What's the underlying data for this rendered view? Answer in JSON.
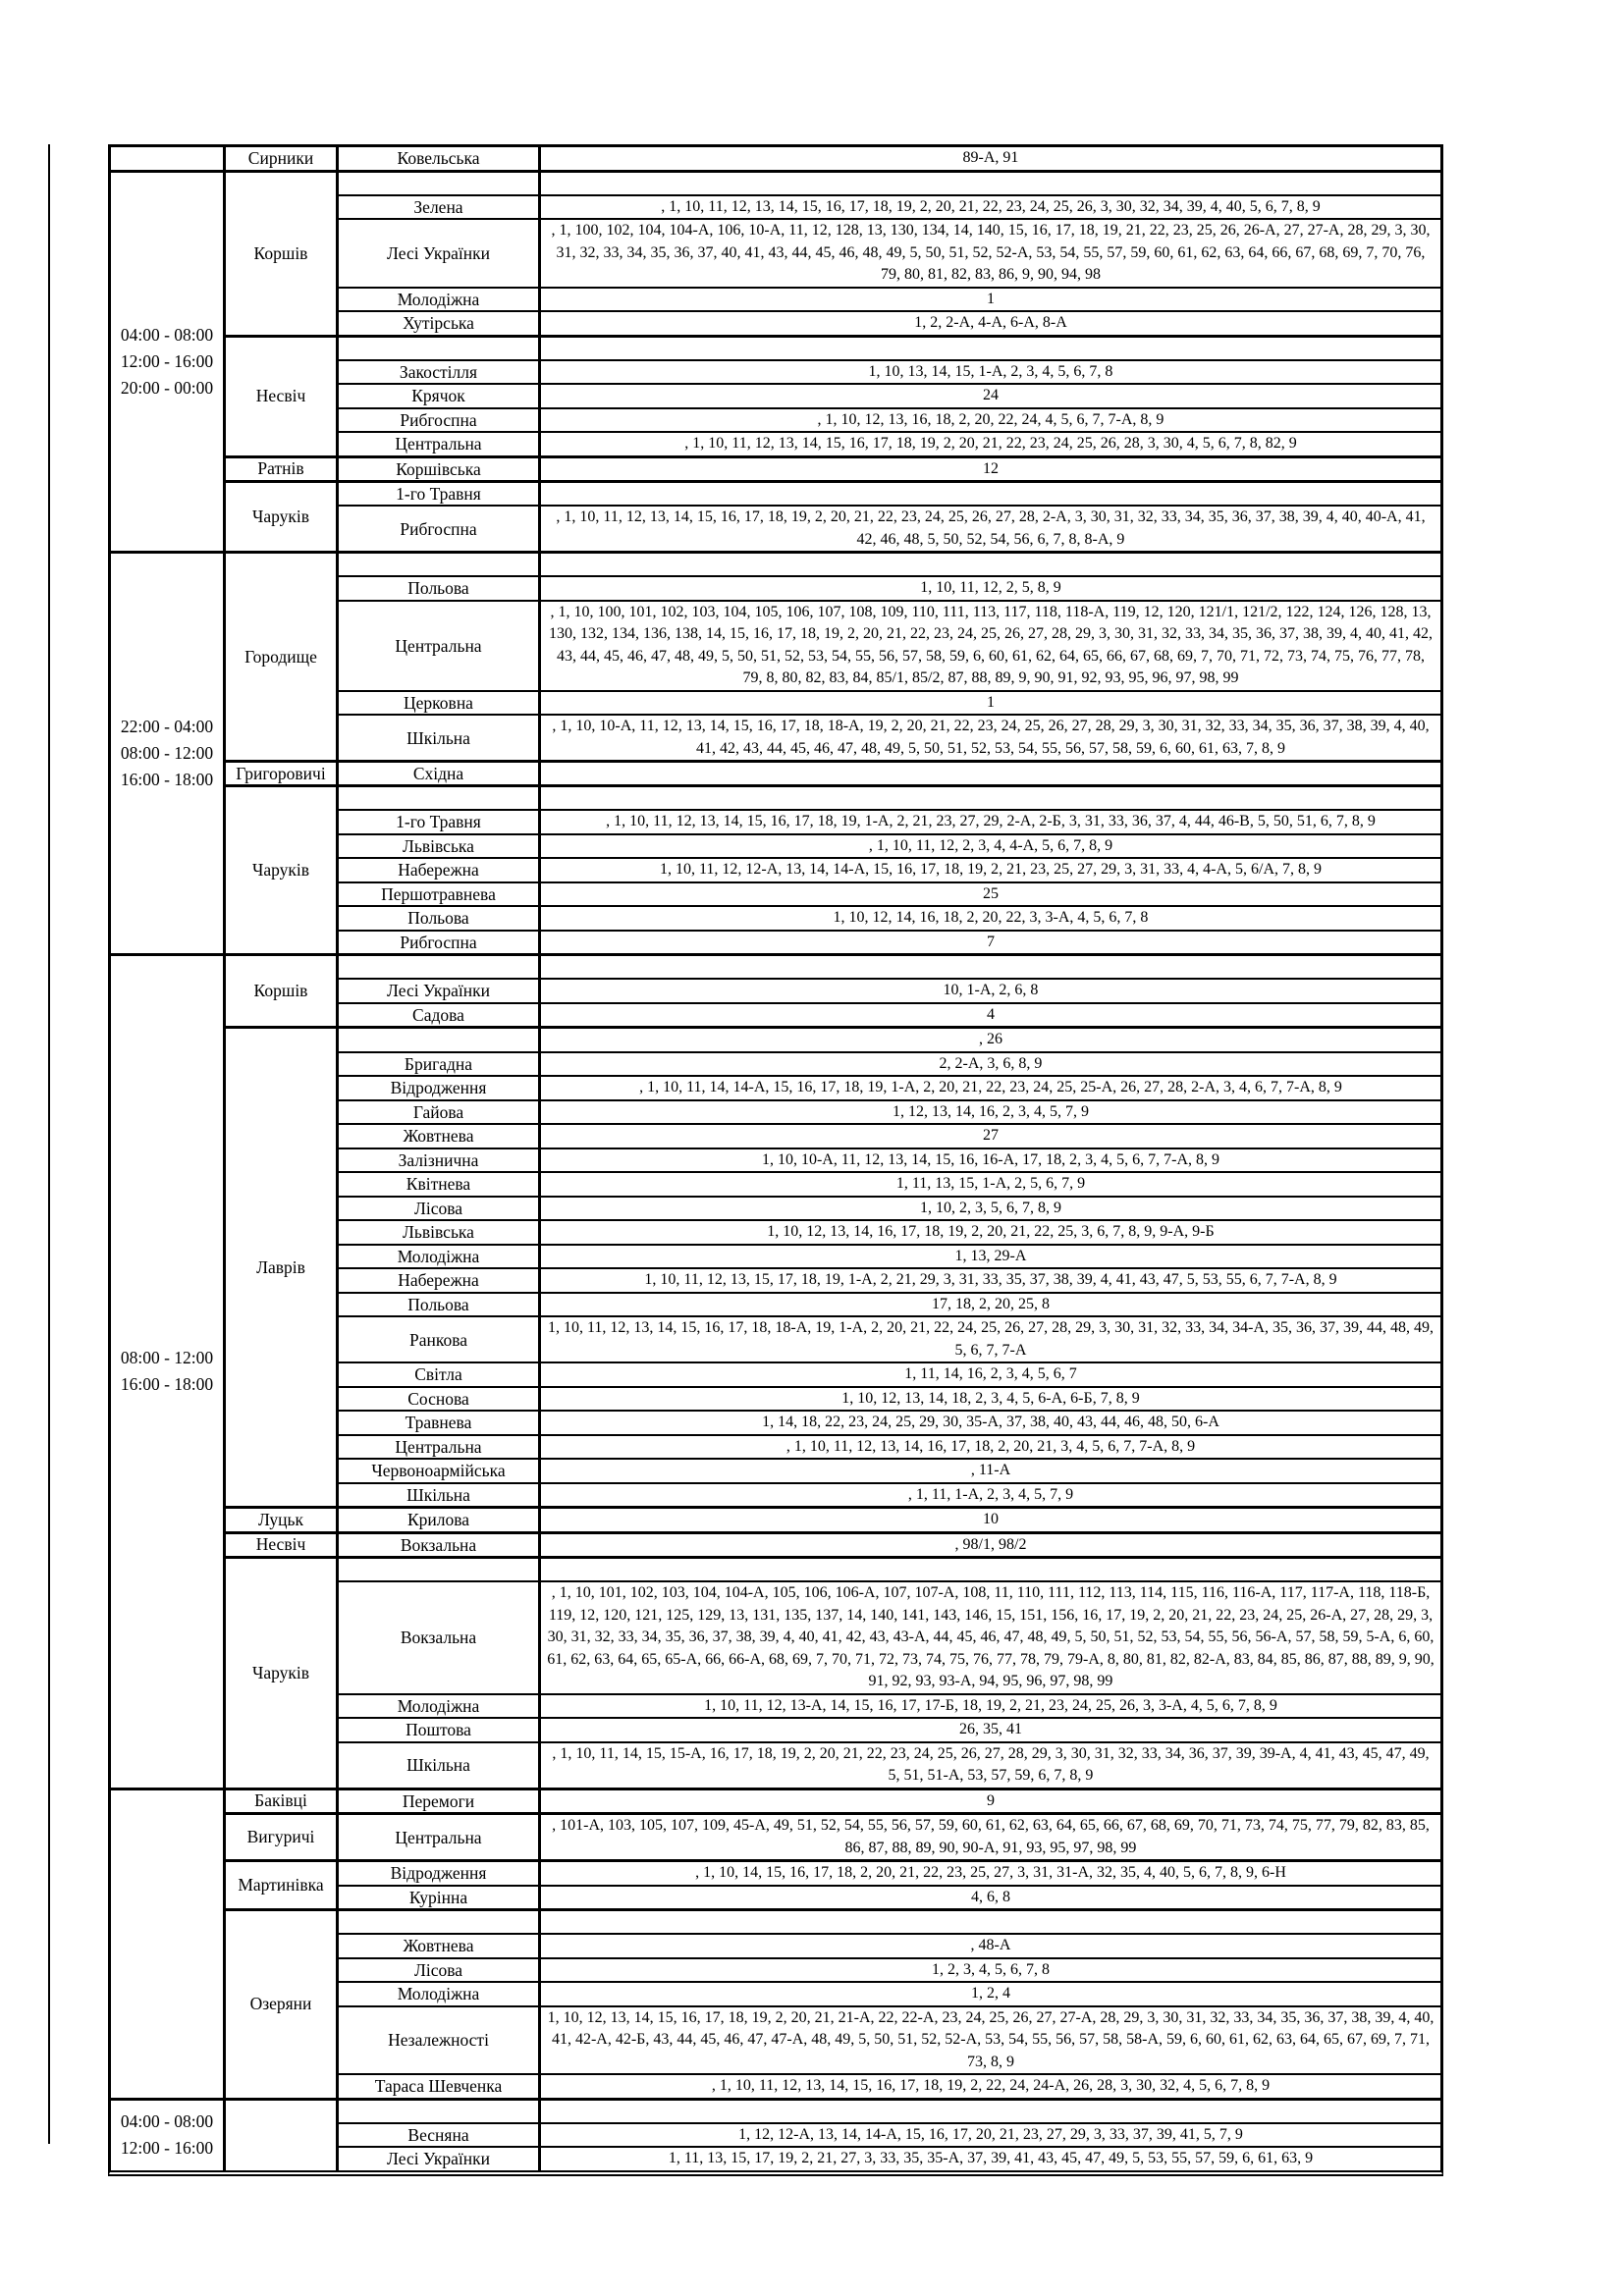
{
  "table": {
    "sections": [
      {
        "time_lines": [],
        "groups": [
          {
            "settlement": "Сирники",
            "rows": [
              {
                "street": "Ковельська",
                "numbers": "89-А, 91"
              }
            ]
          }
        ]
      },
      {
        "time_lines": [
          "04:00 - 08:00",
          "12:00 - 16:00",
          "20:00 - 00:00"
        ],
        "groups": [
          {
            "settlement": "Коршів",
            "rows": [
              {
                "street": "",
                "numbers": ""
              },
              {
                "street": "Зелена",
                "numbers": ", 1, 10, 11, 12, 13, 14, 15, 16, 17, 18, 19, 2, 20, 21, 22, 23, 24, 25, 26, 3, 30, 32, 34, 39, 4, 40, 5, 6, 7, 8, 9"
              },
              {
                "street": "Лесі Українки",
                "numbers": ", 1, 100, 102, 104, 104-А, 106, 10-А, 11, 12, 128, 13, 130, 134, 14, 140, 15, 16, 17, 18, 19, 21, 22, 23, 25, 26, 26-А, 27, 27-А, 28, 29, 3, 30, 31, 32, 33, 34, 35, 36, 37, 40, 41, 43, 44, 45, 46, 48, 49, 5, 50, 51, 52, 52-А, 53, 54, 55, 57, 59, 60, 61, 62, 63, 64, 66, 67, 68, 69, 7, 70, 76, 79, 80, 81, 82, 83, 86, 9, 90, 94, 98"
              },
              {
                "street": "Молодіжна",
                "numbers": "1"
              },
              {
                "street": "Хутірська",
                "numbers": "1, 2, 2-А, 4-А, 6-А, 8-А"
              }
            ]
          },
          {
            "settlement": "Несвіч",
            "rows": [
              {
                "street": "",
                "numbers": ""
              },
              {
                "street": "Закостілля",
                "numbers": "1, 10, 13, 14, 15, 1-А, 2, 3, 4, 5, 6, 7, 8"
              },
              {
                "street": "Крячок",
                "numbers": "24"
              },
              {
                "street": "Рибгоспна",
                "numbers": ", 1, 10, 12, 13, 16, 18, 2, 20, 22, 24, 4, 5, 6, 7, 7-А, 8, 9"
              },
              {
                "street": "Центральна",
                "numbers": ", 1, 10, 11, 12, 13, 14, 15, 16, 17, 18, 19, 2, 20, 21, 22, 23, 24, 25, 26, 28, 3, 30, 4, 5, 6, 7, 8, 82, 9"
              }
            ]
          },
          {
            "settlement": "Ратнів",
            "rows": [
              {
                "street": "Коршівська",
                "numbers": "12"
              }
            ]
          },
          {
            "settlement": "Чаруків",
            "rows": [
              {
                "street": "1-го Травня",
                "numbers": ""
              },
              {
                "street": "Рибгоспна",
                "numbers": ", 1, 10, 11, 12, 13, 14, 15, 16, 17, 18, 19, 2, 20, 21, 22, 23, 24, 25, 26, 27, 28, 2-А, 3, 30, 31, 32, 33, 34, 35, 36, 37, 38, 39, 4, 40, 40-А, 41, 42, 46, 48, 5, 50, 52, 54, 56, 6, 7, 8, 8-А, 9"
              }
            ]
          }
        ]
      },
      {
        "time_lines": [
          "22:00 - 04:00",
          "08:00 - 12:00",
          "16:00 - 18:00"
        ],
        "groups": [
          {
            "settlement": "Городище",
            "rows": [
              {
                "street": "",
                "numbers": ""
              },
              {
                "street": "Польова",
                "numbers": "1, 10, 11, 12, 2, 5, 8, 9"
              },
              {
                "street": "Центральна",
                "numbers": ", 1, 10, 100, 101, 102, 103, 104, 105, 106, 107, 108, 109, 110, 111, 113, 117, 118, 118-А, 119, 12, 120, 121/1, 121/2, 122, 124, 126, 128, 13, 130, 132, 134, 136, 138, 14, 15, 16, 17, 18, 19, 2, 20, 21, 22, 23, 24, 25, 26, 27, 28, 29, 3, 30, 31, 32, 33, 34, 35, 36, 37, 38, 39, 4, 40, 41, 42, 43, 44, 45, 46, 47, 48, 49, 5, 50, 51, 52, 53, 54, 55, 56, 57, 58, 59, 6, 60, 61, 62, 64, 65, 66, 67, 68, 69, 7, 70, 71, 72, 73, 74, 75, 76, 77, 78, 79, 8, 80, 82, 83, 84, 85/1, 85/2, 87, 88, 89, 9, 90, 91, 92, 93, 95, 96, 97, 98, 99"
              },
              {
                "street": "Церковна",
                "numbers": "1"
              },
              {
                "street": "Шкільна",
                "numbers": ", 1, 10, 10-А, 11, 12, 13, 14, 15, 16, 17, 18, 18-А, 19, 2, 20, 21, 22, 23, 24, 25, 26, 27, 28, 29, 3, 30, 31, 32, 33, 34, 35, 36, 37, 38, 39, 4, 40, 41, 42, 43, 44, 45, 46, 47, 48, 49, 5, 50, 51, 52, 53, 54, 55, 56, 57, 58, 59, 6, 60, 61, 63, 7, 8, 9"
              }
            ]
          },
          {
            "settlement": "Григоровичі",
            "rows": [
              {
                "street": "Східна",
                "numbers": ""
              }
            ]
          },
          {
            "settlement": "Чаруків",
            "rows": [
              {
                "street": "",
                "numbers": ""
              },
              {
                "street": "1-го Травня",
                "numbers": ", 1, 10, 11, 12, 13, 14, 15, 16, 17, 18, 19, 1-А, 2, 21, 23, 27, 29, 2-А, 2-Б, 3, 31, 33, 36, 37, 4, 44, 46-В, 5, 50, 51, 6, 7, 8, 9"
              },
              {
                "street": "Львівська",
                "numbers": ", 1, 10, 11, 12, 2, 3, 4, 4-А, 5, 6, 7, 8, 9"
              },
              {
                "street": "Набережна",
                "numbers": "1, 10, 11, 12, 12-А, 13, 14, 14-А, 15, 16, 17, 18, 19, 2, 21, 23, 25, 27, 29, 3, 31, 33, 4, 4-А, 5, 6/А, 7, 8, 9"
              },
              {
                "street": "Першотравнева",
                "numbers": "25"
              },
              {
                "street": "Польова",
                "numbers": "1, 10, 12, 14, 16, 18, 2, 20, 22, 3, 3-А, 4, 5, 6, 7, 8"
              },
              {
                "street": "Рибгоспна",
                "numbers": "7"
              }
            ]
          }
        ]
      },
      {
        "time_lines": [
          "08:00 - 12:00",
          "16:00 - 18:00"
        ],
        "groups": [
          {
            "settlement": "Коршів",
            "rows": [
              {
                "street": "",
                "numbers": ""
              },
              {
                "street": "Лесі Українки",
                "numbers": "10, 1-А, 2, 6, 8"
              },
              {
                "street": "Садова",
                "numbers": "4"
              }
            ]
          },
          {
            "settlement": "Лаврів",
            "rows": [
              {
                "street": "",
                "numbers": ", 26"
              },
              {
                "street": "Бригадна",
                "numbers": "2, 2-А, 3, 6, 8, 9"
              },
              {
                "street": "Відродження",
                "numbers": ", 1, 10, 11, 14, 14-А, 15, 16, 17, 18, 19, 1-А, 2, 20, 21, 22, 23, 24, 25, 25-А, 26, 27, 28, 2-А, 3, 4, 6, 7, 7-А, 8, 9"
              },
              {
                "street": "Гайова",
                "numbers": "1, 12, 13, 14, 16, 2, 3, 4, 5, 7, 9"
              },
              {
                "street": "Жовтнева",
                "numbers": "27"
              },
              {
                "street": "Залізнична",
                "numbers": "1, 10, 10-А, 11, 12, 13, 14, 15, 16, 16-А, 17, 18, 2, 3, 4, 5, 6, 7, 7-А, 8, 9"
              },
              {
                "street": "Квітнева",
                "numbers": "1, 11, 13, 15, 1-А, 2, 5, 6, 7, 9"
              },
              {
                "street": "Лісова",
                "numbers": "1, 10, 2, 3, 5, 6, 7, 8, 9"
              },
              {
                "street": "Львівська",
                "numbers": "1, 10, 12, 13, 14, 16, 17, 18, 19, 2, 20, 21, 22, 25, 3, 6, 7, 8, 9, 9-А, 9-Б"
              },
              {
                "street": "Молодіжна",
                "numbers": "1, 13, 29-А"
              },
              {
                "street": "Набережна",
                "numbers": "1, 10, 11, 12, 13, 15, 17, 18, 19, 1-А, 2, 21, 29, 3, 31, 33, 35, 37, 38, 39, 4, 41, 43, 47, 5, 53, 55, 6, 7, 7-А, 8, 9"
              },
              {
                "street": "Польова",
                "numbers": "17, 18, 2, 20, 25, 8"
              },
              {
                "street": "Ранкова",
                "numbers": "1, 10, 11, 12, 13, 14, 15, 16, 17, 18, 18-А, 19, 1-А, 2, 20, 21, 22, 24, 25, 26, 27, 28, 29, 3, 30, 31, 32, 33, 34, 34-А, 35, 36, 37, 39, 44, 48, 49, 5, 6, 7, 7-А"
              },
              {
                "street": "Світла",
                "numbers": "1, 11, 14, 16, 2, 3, 4, 5, 6, 7"
              },
              {
                "street": "Соснова",
                "numbers": "1, 10, 12, 13, 14, 18, 2, 3, 4, 5, 6-А, 6-Б, 7, 8, 9"
              },
              {
                "street": "Травнева",
                "numbers": "1, 14, 18, 22, 23, 24, 25, 29, 30, 35-А, 37, 38, 40, 43, 44, 46, 48, 50, 6-А"
              },
              {
                "street": "Центральна",
                "numbers": ", 1, 10, 11, 12, 13, 14, 16, 17, 18, 2, 20, 21, 3, 4, 5, 6, 7, 7-А, 8, 9"
              },
              {
                "street": "Червоноармійська",
                "numbers": ", 11-А"
              },
              {
                "street": "Шкільна",
                "numbers": ", 1, 11, 1-А, 2, 3, 4, 5, 7, 9"
              }
            ]
          },
          {
            "settlement": "Луцьк",
            "rows": [
              {
                "street": "Крилова",
                "numbers": "10"
              }
            ]
          },
          {
            "settlement": "Несвіч",
            "rows": [
              {
                "street": "Вокзальна",
                "numbers": ", 98/1, 98/2"
              }
            ]
          },
          {
            "settlement": "Чаруків",
            "rows": [
              {
                "street": "",
                "numbers": ""
              },
              {
                "street": "Вокзальна",
                "numbers": ", 1, 10, 101, 102, 103, 104, 104-А, 105, 106, 106-А, 107, 107-А, 108, 11, 110, 111, 112, 113, 114, 115, 116, 116-А, 117, 117-А, 118, 118-Б, 119, 12, 120, 121, 125, 129, 13, 131, 135, 137, 14, 140, 141, 143, 146, 15, 151, 156, 16, 17, 19, 2, 20, 21, 22, 23, 24, 25, 26-А, 27, 28, 29, 3, 30, 31, 32, 33, 34, 35, 36, 37, 38, 39, 4, 40, 41, 42, 43, 43-А, 44, 45, 46, 47, 48, 49, 5, 50, 51, 52, 53, 54, 55, 56, 56-А, 57, 58, 59, 5-А, 6, 60, 61, 62, 63, 64, 65, 65-А, 66, 66-А, 68, 69, 7, 70, 71, 72, 73, 74, 75, 76, 77, 78, 79, 79-А, 8, 80, 81, 82, 82-А, 83, 84, 85, 86, 87, 88, 89, 9, 90, 91, 92, 93, 93-А, 94, 95, 96, 97, 98, 99"
              },
              {
                "street": "Молодіжна",
                "numbers": "1, 10, 11, 12, 13-А, 14, 15, 16, 17, 17-Б, 18, 19, 2, 21, 23, 24, 25, 26, 3, 3-А, 4, 5, 6, 7, 8, 9"
              },
              {
                "street": "Поштова",
                "numbers": "26, 35, 41"
              },
              {
                "street": "Шкільна",
                "numbers": ", 1, 10, 11, 14, 15, 15-А, 16, 17, 18, 19, 2, 20, 21, 22, 23, 24, 25, 26, 27, 28, 29, 3, 30, 31, 32, 33, 34, 36, 37, 39, 39-А, 4, 41, 43, 45, 47, 49, 5, 51, 51-А, 53, 57, 59, 6, 7, 8, 9"
              }
            ]
          }
        ]
      },
      {
        "time_lines": [],
        "groups": [
          {
            "settlement": "Баківці",
            "rows": [
              {
                "street": "Перемоги",
                "numbers": "9"
              }
            ]
          },
          {
            "settlement": "Вигуричі",
            "rows": [
              {
                "street": "Центральна",
                "numbers": ", 101-А, 103, 105, 107, 109, 45-А, 49, 51, 52, 54, 55, 56, 57, 59, 60, 61, 62, 63, 64, 65, 66, 67, 68, 69, 70, 71, 73, 74, 75, 77, 79, 82, 83, 85, 86, 87, 88, 89, 90, 90-А, 91, 93, 95, 97, 98, 99"
              }
            ]
          },
          {
            "settlement": "Мартинівка",
            "rows": [
              {
                "street": "Відродження",
                "numbers": ", 1, 10, 14, 15, 16, 17, 18, 2, 20, 21, 22, 23, 25, 27, 3, 31, 31-А, 32, 35, 4, 40, 5, 6, 7, 8, 9, 6-Н"
              },
              {
                "street": "Курінна",
                "numbers": "4, 6, 8"
              }
            ]
          },
          {
            "settlement": "Озеряни",
            "rows": [
              {
                "street": "",
                "numbers": ""
              },
              {
                "street": "Жовтнева",
                "numbers": ", 48-А"
              },
              {
                "street": "Лісова",
                "numbers": "1, 2, 3, 4, 5, 6, 7, 8"
              },
              {
                "street": "Молодіжна",
                "numbers": "1, 2, 4"
              },
              {
                "street": "Незалежності",
                "numbers": "1, 10, 12, 13, 14, 15, 16, 17, 18, 19, 2, 20, 21, 21-А, 22, 22-А, 23, 24, 25, 26, 27, 27-А, 28, 29, 3, 30, 31, 32, 33, 34, 35, 36, 37, 38, 39, 4, 40, 41, 42-А, 42-Б, 43, 44, 45, 46, 47, 47-А, 48, 49, 5, 50, 51, 52, 52-А, 53, 54, 55, 56, 57, 58, 58-А, 59, 6, 60, 61, 62, 63, 64, 65, 67, 69, 7, 71, 73, 8, 9"
              },
              {
                "street": "Тараса Шевченка",
                "numbers": ", 1, 10, 11, 12, 13, 14, 15, 16, 17, 18, 19, 2, 22, 24, 24-А, 26, 28, 3, 30, 32, 4, 5, 6, 7, 8, 9"
              }
            ]
          }
        ]
      },
      {
        "time_lines": [
          "04:00 - 08:00",
          "12:00 - 16:00"
        ],
        "groups": [
          {
            "settlement": "",
            "rows": [
              {
                "street": "",
                "numbers": ""
              },
              {
                "street": "Весняна",
                "numbers": "1, 12, 12-А, 13, 14, 14-А, 15, 16, 17, 20, 21, 23, 27, 29, 3, 33, 37, 39, 41, 5, 7, 9"
              },
              {
                "street": "Лесі Українки",
                "numbers": "1, 11, 13, 15, 17, 19, 2, 21, 27, 3, 33, 35, 35-А, 37, 39, 41, 43, 45, 47, 49, 5, 53, 55, 57, 59, 6, 61, 63, 9"
              }
            ]
          }
        ]
      }
    ]
  }
}
